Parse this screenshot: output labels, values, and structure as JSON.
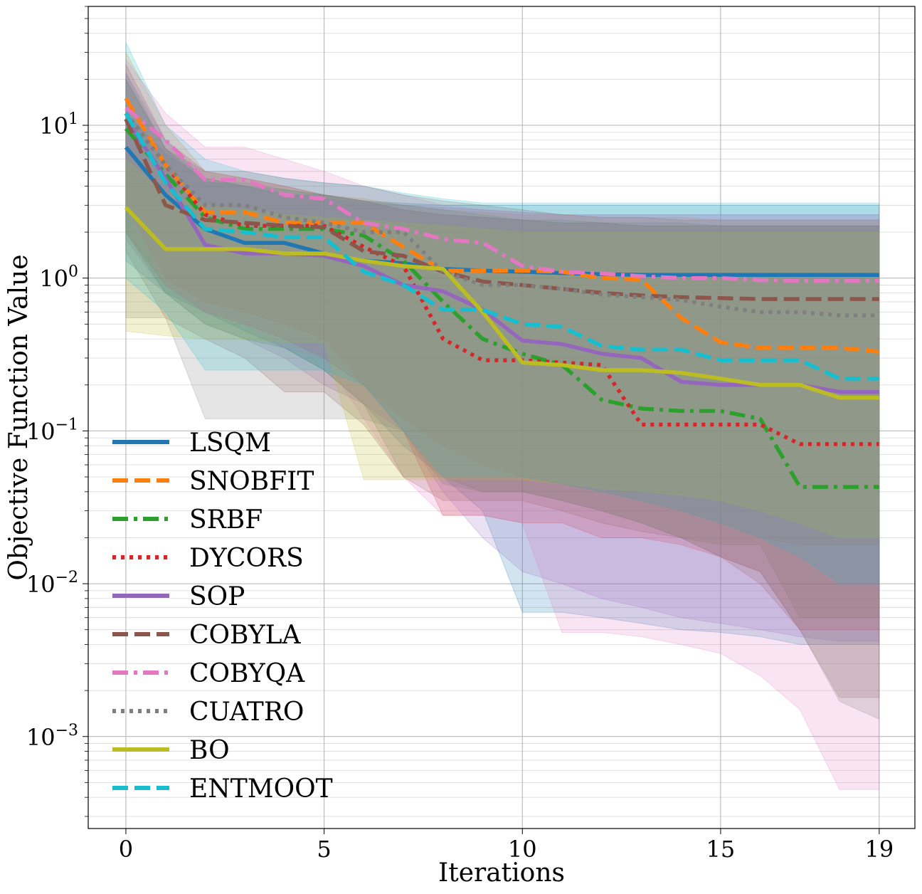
{
  "chart_data": {
    "type": "line",
    "title": "",
    "xlabel": "Iterations",
    "ylabel": "Objective Function Value",
    "yscale": "log",
    "xlim": [
      -0.95,
      19.9
    ],
    "ylim": [
      0.00025,
      60
    ],
    "x": [
      0,
      1,
      2,
      3,
      4,
      5,
      6,
      7,
      8,
      9,
      10,
      11,
      12,
      13,
      14,
      15,
      16,
      17,
      18,
      19
    ],
    "xticks": [
      0,
      5,
      10,
      15,
      19
    ],
    "xtick_labels": [
      "0",
      "5",
      "10",
      "15",
      "19"
    ],
    "yticks": [
      0.001,
      0.01,
      0.1,
      1,
      10
    ],
    "ytick_labels": [
      {
        "base": "10",
        "exp": "−3"
      },
      {
        "base": "10",
        "exp": "−2"
      },
      {
        "base": "10",
        "exp": "−1"
      },
      {
        "base": "10",
        "exp": "0"
      },
      {
        "base": "10",
        "exp": "1"
      }
    ],
    "grid": true,
    "legend_position": "lower-left",
    "series": [
      {
        "name": "LSQM",
        "color": "#1f77b4",
        "dash": "solid",
        "values": [
          7.2,
          3.5,
          2.1,
          1.7,
          1.7,
          1.45,
          1.3,
          1.25,
          1.15,
          1.12,
          1.1,
          1.08,
          1.06,
          1.05,
          1.05,
          1.05,
          1.05,
          1.05,
          1.05,
          1.05
        ],
        "upper": [
          12,
          6.5,
          4.5,
          4,
          3.5,
          3.5,
          3.2,
          3.1,
          3,
          3,
          3,
          3,
          3,
          3,
          3,
          3,
          3,
          3,
          3,
          3
        ],
        "lower": [
          1.3,
          0.8,
          0.6,
          0.45,
          0.35,
          0.25,
          0.15,
          0.08,
          0.05,
          0.03,
          0.0065,
          0.0065,
          0.006,
          0.0055,
          0.005,
          0.0048,
          0.0045,
          0.004,
          0.004,
          0.004
        ]
      },
      {
        "name": "SNOBFIT",
        "color": "#ff7f0e",
        "dash": "dashed",
        "values": [
          15,
          5.5,
          2.7,
          2.7,
          2.3,
          2.3,
          2.3,
          1.6,
          1.12,
          1.12,
          1.12,
          1.1,
          1,
          0.98,
          0.55,
          0.38,
          0.35,
          0.35,
          0.35,
          0.33
        ],
        "upper": [
          30,
          10,
          5,
          4.5,
          4,
          3.5,
          3.3,
          3,
          2.8,
          2.7,
          2.6,
          2.6,
          2.5,
          2.5,
          2.5,
          2.4,
          2.4,
          2.4,
          2.4,
          2.4
        ],
        "lower": [
          3,
          1,
          0.7,
          0.6,
          0.5,
          0.4,
          0.2,
          0.12,
          0.08,
          0.06,
          0.05,
          0.045,
          0.04,
          0.035,
          0.03,
          0.025,
          0.02,
          0.018,
          0.018,
          0.018
        ]
      },
      {
        "name": "SRBF",
        "color": "#2ca02c",
        "dash": "dashdot",
        "values": [
          9.5,
          4.8,
          2.5,
          2.1,
          2.1,
          2.1,
          1.9,
          1.3,
          0.7,
          0.4,
          0.32,
          0.27,
          0.16,
          0.14,
          0.135,
          0.135,
          0.12,
          0.043,
          0.043,
          0.043
        ],
        "upper": [
          20,
          7,
          4.5,
          4,
          3.8,
          3.5,
          3.2,
          3,
          2.8,
          2.6,
          2.4,
          2.4,
          2.3,
          2.3,
          2.3,
          2.2,
          2.2,
          2.2,
          2.2,
          2.2
        ],
        "lower": [
          2,
          0.8,
          0.5,
          0.4,
          0.35,
          0.25,
          0.15,
          0.05,
          0.05,
          0.04,
          0.04,
          0.035,
          0.03,
          0.025,
          0.02,
          0.018,
          0.018,
          0.006,
          0.006,
          0.006
        ]
      },
      {
        "name": "DYCORS",
        "color": "#d62728",
        "dash": "dotted",
        "values": [
          12,
          5.5,
          2.6,
          2.2,
          2.2,
          2.2,
          1.6,
          1.2,
          0.4,
          0.29,
          0.29,
          0.28,
          0.27,
          0.11,
          0.11,
          0.11,
          0.11,
          0.082,
          0.082,
          0.082
        ],
        "upper": [
          25,
          8,
          5,
          4.5,
          4,
          3.5,
          3.2,
          2.8,
          2.6,
          2.5,
          2.4,
          2.3,
          2.3,
          2.2,
          2.2,
          2.2,
          2.2,
          2.2,
          2.2,
          2.2
        ],
        "lower": [
          2,
          0.9,
          0.6,
          0.5,
          0.4,
          0.3,
          0.2,
          0.1,
          0.028,
          0.028,
          0.025,
          0.025,
          0.02,
          0.02,
          0.018,
          0.015,
          0.012,
          0.005,
          0.005,
          0.005
        ]
      },
      {
        "name": "SOP",
        "color": "#9467bd",
        "dash": "solid",
        "values": [
          11,
          4.5,
          1.65,
          1.45,
          1.45,
          1.4,
          1.2,
          0.9,
          0.82,
          0.62,
          0.39,
          0.37,
          0.32,
          0.3,
          0.21,
          0.2,
          0.2,
          0.2,
          0.18,
          0.18
        ],
        "upper": [
          22,
          8,
          4.3,
          4,
          3.6,
          3.3,
          3.1,
          3,
          2.9,
          2.8,
          2.7,
          2.6,
          2.6,
          2.6,
          2.6,
          2.6,
          2.6,
          2.6,
          2.6,
          2.6
        ],
        "lower": [
          1.8,
          0.8,
          0.5,
          0.4,
          0.3,
          0.2,
          0.15,
          0.1,
          0.04,
          0.02,
          0.012,
          0.01,
          0.008,
          0.007,
          0.006,
          0.0055,
          0.005,
          0.0045,
          0.0042,
          0.0042
        ]
      },
      {
        "name": "COBYLA",
        "color": "#8c564b",
        "dash": "dashed",
        "values": [
          11,
          3,
          2.4,
          2.3,
          2.2,
          2.15,
          1.5,
          1.4,
          1.1,
          0.95,
          0.9,
          0.85,
          0.8,
          0.77,
          0.75,
          0.74,
          0.73,
          0.73,
          0.73,
          0.73
        ],
        "upper": [
          20,
          7,
          5,
          5,
          4.5,
          4.2,
          4,
          3.5,
          3.2,
          3,
          2.8,
          2.6,
          2.5,
          2.5,
          2.4,
          2.4,
          2.4,
          2.4,
          2.4,
          2.4
        ],
        "lower": [
          1.5,
          0.55,
          0.4,
          0.3,
          0.18,
          0.18,
          0.11,
          0.05,
          0.035,
          0.035,
          0.035,
          0.03,
          0.025,
          0.022,
          0.02,
          0.015,
          0.01,
          0.005,
          0.0018,
          0.0018
        ]
      },
      {
        "name": "COBYQA",
        "color": "#e377c2",
        "dash": "dashdot",
        "values": [
          13,
          8,
          4.4,
          4.4,
          3.5,
          3.3,
          2.3,
          2.1,
          1.8,
          1.7,
          1.2,
          1.1,
          1.07,
          1.03,
          1,
          1,
          0.97,
          0.96,
          0.96,
          0.96
        ],
        "upper": [
          27,
          12,
          7.2,
          7.2,
          6,
          5,
          4,
          3.5,
          3,
          2.8,
          2.7,
          2.6,
          2.6,
          2.6,
          2.6,
          2.6,
          2.6,
          2.6,
          2.6,
          2.6
        ],
        "lower": [
          3,
          0.9,
          0.6,
          0.5,
          0.35,
          0.3,
          0.12,
          0.05,
          0.028,
          0.028,
          0.025,
          0.0048,
          0.0048,
          0.0045,
          0.004,
          0.0035,
          0.0025,
          0.0015,
          0.00045,
          0.00045
        ]
      },
      {
        "name": "CUATRO",
        "color": "#7f7f7f",
        "dash": "dotted",
        "values": [
          12,
          5.5,
          3,
          3,
          2.5,
          2.3,
          2,
          2,
          1.1,
          0.9,
          0.9,
          0.85,
          0.78,
          0.75,
          0.72,
          0.65,
          0.6,
          0.6,
          0.57,
          0.57
        ],
        "upper": [
          22,
          7,
          4.2,
          4.2,
          3.8,
          3.5,
          3.2,
          2.8,
          2.6,
          2.5,
          2.4,
          2.3,
          2.3,
          2.2,
          2.2,
          2.2,
          2.2,
          2.2,
          2.2,
          2.2
        ],
        "lower": [
          0.55,
          0.55,
          0.12,
          0.12,
          0.12,
          0.12,
          0.12,
          0.1,
          0.045,
          0.04,
          0.04,
          0.035,
          0.03,
          0.025,
          0.02,
          0.015,
          0.012,
          0.005,
          0.0017,
          0.0013
        ]
      },
      {
        "name": "BO",
        "color": "#bcbd22",
        "dash": "solid",
        "values": [
          2.9,
          1.55,
          1.55,
          1.55,
          1.45,
          1.45,
          1.3,
          1.2,
          1.15,
          0.6,
          0.28,
          0.27,
          0.25,
          0.25,
          0.24,
          0.22,
          0.2,
          0.2,
          0.165,
          0.165
        ],
        "upper": [
          6,
          3.5,
          3,
          2.8,
          2.6,
          2.5,
          2.4,
          2.3,
          2.2,
          2.1,
          2,
          2,
          2,
          2,
          2,
          2,
          2,
          2,
          2,
          2
        ],
        "lower": [
          0.45,
          0.42,
          0.4,
          0.4,
          0.38,
          0.38,
          0.048,
          0.048,
          0.048,
          0.048,
          0.048,
          0.045,
          0.042,
          0.04,
          0.038,
          0.035,
          0.03,
          0.025,
          0.02,
          0.02
        ]
      },
      {
        "name": "ENTMOOT",
        "color": "#17becf",
        "dash": "dashed",
        "values": [
          12,
          4.2,
          2.1,
          2,
          1.85,
          1.85,
          1.1,
          0.9,
          0.62,
          0.62,
          0.5,
          0.48,
          0.36,
          0.34,
          0.34,
          0.29,
          0.29,
          0.29,
          0.22,
          0.22
        ],
        "upper": [
          35,
          10,
          6,
          5,
          4.5,
          4.2,
          4,
          3.6,
          3.3,
          3.1,
          3.1,
          3.1,
          3.1,
          3.1,
          3.1,
          3.1,
          3.1,
          3.1,
          3.1,
          3.1
        ],
        "lower": [
          1,
          0.6,
          0.25,
          0.25,
          0.25,
          0.25,
          0.2,
          0.1,
          0.05,
          0.05,
          0.05,
          0.045,
          0.04,
          0.035,
          0.03,
          0.025,
          0.02,
          0.015,
          0.01,
          0.01
        ]
      }
    ]
  }
}
